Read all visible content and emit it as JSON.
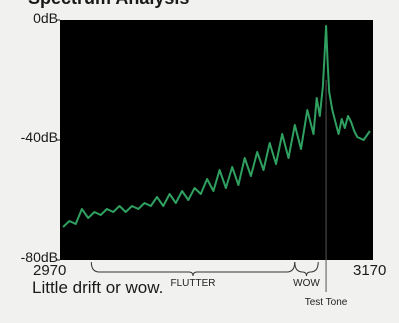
{
  "heading_fragment": "Spectrum Analysis",
  "caption": "Little drift or wow.",
  "chart_data": {
    "type": "line",
    "title": "",
    "xlabel": "",
    "ylabel": "",
    "x_ticks": [
      "2970",
      "3170"
    ],
    "y_ticks": [
      "0dB",
      "-40dB",
      "-80dB"
    ],
    "xlim": [
      2970,
      3170
    ],
    "ylim": [
      -80,
      0
    ],
    "grid": false,
    "background": "#000000",
    "line_color": "#2fa060",
    "annotations": [
      {
        "label": "FLUTTER",
        "x_start": 2990,
        "x_end": 3120
      },
      {
        "label": "WOW",
        "x_start": 3120,
        "x_end": 3135
      },
      {
        "label": "Test Tone",
        "x": 3140
      }
    ],
    "series": [
      {
        "x": [
          2972,
          2976,
          2980,
          2984,
          2988,
          2992,
          2996,
          3000,
          3004,
          3008,
          3012,
          3016,
          3020,
          3024,
          3028,
          3032,
          3036,
          3040,
          3044,
          3048,
          3052,
          3056,
          3060,
          3064,
          3068,
          3072,
          3076,
          3080,
          3084,
          3088,
          3092,
          3096,
          3100,
          3104,
          3108,
          3112,
          3116,
          3120,
          3124,
          3128,
          3132,
          3134,
          3136,
          3138,
          3139,
          3140,
          3141,
          3142,
          3144,
          3146,
          3148,
          3150,
          3152,
          3154,
          3156,
          3158,
          3160,
          3164,
          3168
        ],
        "values": [
          -69,
          -67,
          -68,
          -63,
          -66,
          -64,
          -65,
          -63,
          -64,
          -62,
          -64,
          -62,
          -63,
          -61,
          -62,
          -59,
          -62,
          -58,
          -61,
          -57,
          -60,
          -56,
          -58,
          -53,
          -57,
          -50,
          -56,
          -49,
          -55,
          -46,
          -52,
          -44,
          -50,
          -41,
          -48,
          -38,
          -46,
          -35,
          -43,
          -30,
          -38,
          -26,
          -32,
          -22,
          -12,
          -2,
          -14,
          -24,
          -30,
          -34,
          -38,
          -33,
          -36,
          -32,
          -34,
          -37,
          -39,
          -40,
          -37
        ]
      }
    ]
  }
}
